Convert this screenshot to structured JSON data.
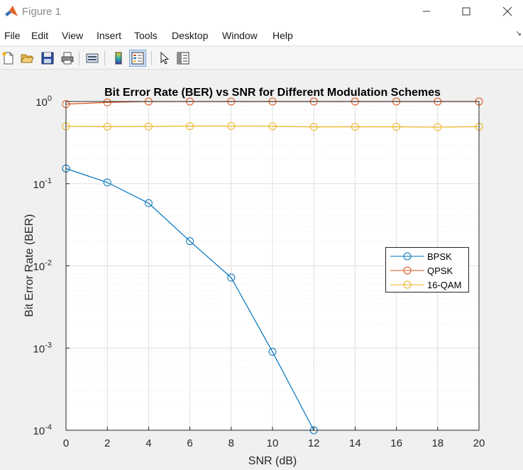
{
  "window": {
    "title": "Figure 1",
    "controls": [
      "minimize-icon",
      "maximize-icon",
      "close-icon"
    ]
  },
  "menu": {
    "items": [
      {
        "label": "File"
      },
      {
        "label": "Edit"
      },
      {
        "label": "View"
      },
      {
        "label": "Insert"
      },
      {
        "label": "Tools"
      },
      {
        "label": "Desktop"
      },
      {
        "label": "Window"
      },
      {
        "label": "Help"
      }
    ]
  },
  "toolbar": {
    "tools": [
      "new-figure-icon",
      "open-icon",
      "save-icon",
      "print-icon",
      "link-plot-icon",
      "colorbar-icon",
      "legend-icon",
      "pointer-icon",
      "property-editor-icon"
    ]
  },
  "colors": {
    "bpsk": "#0072bd",
    "qpsk": "#d95319",
    "qam16": "#edb120",
    "grid": "#dfdfdf",
    "axes": "#262626"
  },
  "chart_data": {
    "type": "line",
    "title": "Bit Error Rate (BER) vs SNR for Different Modulation Schemes",
    "xlabel": "SNR (dB)",
    "ylabel": "Bit Error Rate (BER)",
    "xscale": "linear",
    "yscale": "log",
    "xlim": [
      0,
      20
    ],
    "ylim": [
      0.0001,
      1
    ],
    "xticks": [
      "0",
      "2",
      "4",
      "6",
      "8",
      "10",
      "12",
      "14",
      "16",
      "18",
      "20"
    ],
    "yticks": [
      {
        "base": "10",
        "exp": "-4",
        "value": 0.0001
      },
      {
        "base": "10",
        "exp": "-3",
        "value": 0.001
      },
      {
        "base": "10",
        "exp": "-2",
        "value": 0.01
      },
      {
        "base": "10",
        "exp": "-1",
        "value": 0.1
      },
      {
        "base": "10",
        "exp": "0",
        "value": 1
      }
    ],
    "grid": true,
    "legend_position": "right",
    "x": [
      0,
      2,
      4,
      6,
      8,
      10,
      12,
      14,
      16,
      18,
      20
    ],
    "series": [
      {
        "name": "BPSK",
        "color": "#0072bd",
        "marker": "circle",
        "values": [
          0.153,
          0.1035,
          0.058,
          0.02,
          0.0072,
          0.0009,
          0.0001,
          null,
          null,
          null,
          null
        ]
      },
      {
        "name": "QPSK",
        "color": "#d95319",
        "marker": "circle",
        "values": [
          0.93,
          0.975,
          1.0,
          1.0,
          1.0,
          1.0,
          1.0,
          1.0,
          1.0,
          1.0,
          1.0
        ]
      },
      {
        "name": "16-QAM",
        "color": "#edb120",
        "marker": "circle",
        "values": [
          0.5,
          0.495,
          0.497,
          0.502,
          0.503,
          0.5,
          0.491,
          0.492,
          0.492,
          0.488,
          0.494
        ]
      }
    ]
  }
}
